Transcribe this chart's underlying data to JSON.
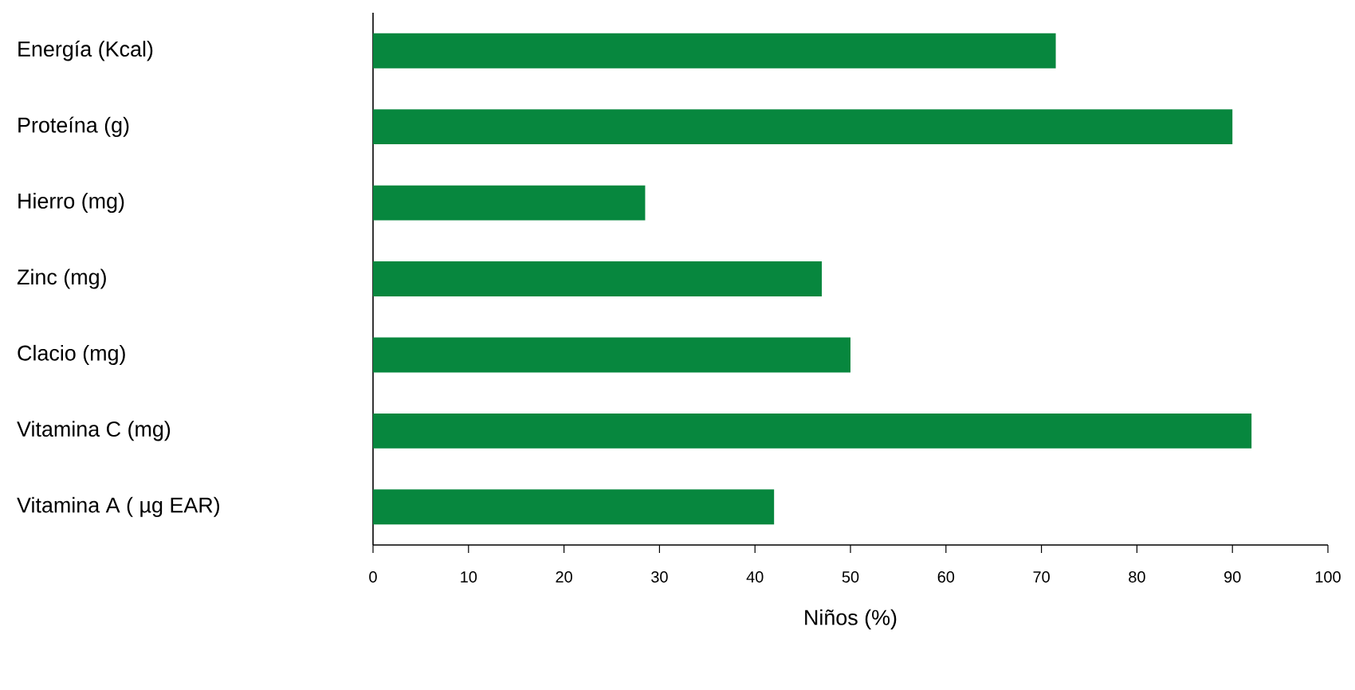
{
  "chart_data": {
    "type": "bar",
    "orientation": "horizontal",
    "xlabel": "Niños (%)",
    "categories": [
      "Energía (Kcal)",
      "Proteína (g)",
      "Hierro (mg)",
      "Zinc (mg)",
      "Clacio (mg)",
      "Vitamina C (mg)",
      "Vitamina A ( µg EAR)"
    ],
    "values": [
      71.5,
      90,
      28.5,
      47,
      50,
      92,
      42
    ],
    "color": "#07873e",
    "xlim": [
      0,
      100
    ],
    "xticks": [
      0,
      10,
      20,
      30,
      40,
      50,
      60,
      70,
      80,
      90,
      100
    ]
  }
}
